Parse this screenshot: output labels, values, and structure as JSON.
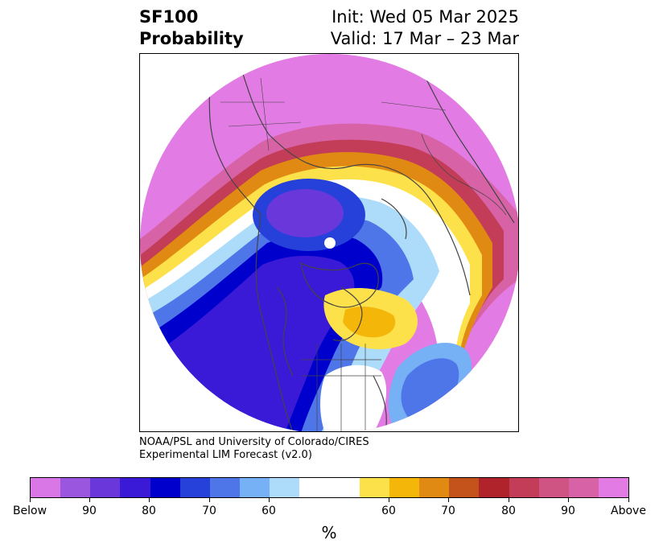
{
  "title": {
    "variable": "SF100",
    "subtitle": "Probability",
    "init": "Init: Wed 05 Mar 2025",
    "valid": "Valid: 17 Mar – 23 Mar"
  },
  "credit": {
    "line1": "NOAA/PSL and University of Colorado/CIRES",
    "line2": "Experimental LIM Forecast (v2.0)"
  },
  "map": {
    "projection": "north-polar-stereographic",
    "field": "SF100 probability (%)",
    "colors": {
      "below_high": "#e27be3",
      "below_mid": "#3e1fd6",
      "below_low": "#a9d8fb",
      "near_normal": "#ffffff",
      "above_low": "#fde14a",
      "above_mid": "#c14d1b",
      "above_high": "#e27be3",
      "coastline": "#444444"
    }
  },
  "colorbar": {
    "unit": "%",
    "colors": [
      "#d977e6",
      "#9b56e0",
      "#6a38da",
      "#3a1ad6",
      "#0000cd",
      "#2541d9",
      "#4e76e8",
      "#76b0f5",
      "#addcfb",
      "#ffffff",
      "#ffffff",
      "#fde14a",
      "#f5b60a",
      "#e08a13",
      "#c4521b",
      "#b0232a",
      "#c33d58",
      "#cf5483",
      "#d862a6",
      "#e27be3"
    ],
    "ticks": [
      "Below",
      "90",
      "80",
      "70",
      "60",
      "60",
      "70",
      "80",
      "90",
      "Above"
    ]
  }
}
